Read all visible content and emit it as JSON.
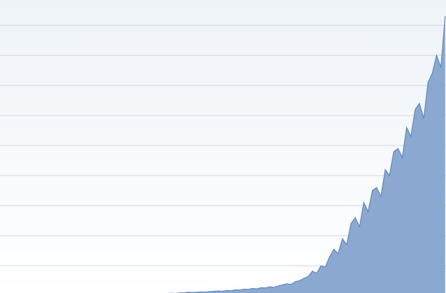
{
  "chart_data": {
    "type": "area",
    "x": [
      0,
      1,
      2,
      3,
      4,
      5,
      6,
      7,
      8,
      9,
      10,
      11,
      12,
      13,
      14,
      15,
      16,
      17,
      18,
      19,
      20,
      21,
      22,
      23,
      24,
      25,
      26,
      27,
      28,
      29,
      30,
      31,
      32,
      33,
      34,
      35,
      36,
      37,
      38,
      39,
      40,
      41,
      42,
      43,
      44,
      45,
      46,
      47,
      48,
      49,
      50,
      51,
      52,
      53,
      54,
      55,
      56,
      57,
      58,
      59,
      60,
      61,
      62,
      63,
      64,
      65,
      66,
      67,
      68,
      69
    ],
    "series": [
      {
        "color": "#5b87c2",
        "fill": "#8aa8d0",
        "values": [
          0.05,
          0.06,
          0.07,
          0.06,
          0.08,
          0.09,
          0.08,
          0.1,
          0.1,
          0.12,
          0.11,
          0.12,
          0.13,
          0.12,
          0.14,
          0.15,
          0.16,
          0.15,
          0.18,
          0.17,
          0.2,
          0.19,
          0.22,
          0.21,
          0.25,
          0.23,
          0.27,
          0.26,
          0.3,
          0.28,
          0.33,
          0.36,
          0.4,
          0.38,
          0.47,
          0.5,
          0.58,
          0.64,
          0.82,
          0.75,
          1.0,
          0.95,
          1.3,
          1.55,
          1.4,
          1.9,
          1.7,
          2.4,
          2.6,
          2.3,
          3.1,
          2.8,
          3.5,
          3.6,
          3.3,
          4.2,
          4.0,
          4.8,
          4.9,
          4.6,
          5.6,
          5.3,
          6.2,
          6.4,
          5.9,
          7.1,
          7.4,
          8.0,
          7.6,
          9.3
        ]
      }
    ],
    "xlim": [
      -35,
      69.2
    ],
    "ylim": [
      0,
      9.84
    ],
    "yticks": [
      1,
      2,
      3,
      4,
      5,
      6,
      7,
      8,
      9
    ],
    "grid": true
  }
}
